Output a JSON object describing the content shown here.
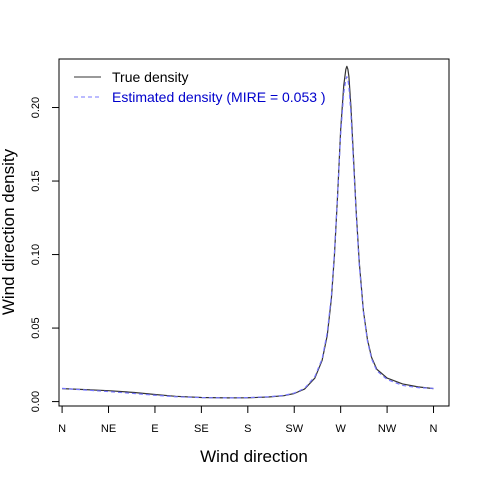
{
  "chart_data": {
    "type": "line",
    "title": "",
    "xlabel": "Wind direction",
    "ylabel": "Wind direction density",
    "x_ticks": [
      "N",
      "NE",
      "E",
      "SE",
      "S",
      "SW",
      "W",
      "NW",
      "N"
    ],
    "x_tick_degrees": [
      0,
      45,
      90,
      135,
      180,
      225,
      270,
      315,
      360
    ],
    "y_ticks": [
      "0.00",
      "0.05",
      "0.10",
      "0.15",
      "0.20"
    ],
    "y_tick_values": [
      0.0,
      0.05,
      0.1,
      0.15,
      0.2
    ],
    "xlim": [
      -3,
      375
    ],
    "ylim": [
      -0.003,
      0.233
    ],
    "grid": false,
    "legend_position": "top-left",
    "series": [
      {
        "name": "True density",
        "color": "#333333",
        "dash": "solid",
        "x": [
          0,
          20,
          45,
          70,
          90,
          110,
          135,
          160,
          180,
          200,
          215,
          225,
          235,
          245,
          252,
          257,
          261,
          264,
          267,
          270,
          273,
          275,
          276,
          277,
          278,
          280,
          282,
          285,
          288,
          292,
          296,
          300,
          305,
          315,
          330,
          345,
          360
        ],
        "y": [
          0.0088,
          0.0082,
          0.0074,
          0.0062,
          0.0048,
          0.0036,
          0.0028,
          0.0025,
          0.0026,
          0.0031,
          0.004,
          0.0055,
          0.0085,
          0.016,
          0.028,
          0.045,
          0.07,
          0.1,
          0.14,
          0.185,
          0.215,
          0.226,
          0.228,
          0.226,
          0.221,
          0.2,
          0.172,
          0.13,
          0.095,
          0.062,
          0.042,
          0.03,
          0.022,
          0.016,
          0.012,
          0.01,
          0.0088
        ]
      },
      {
        "name": "Estimated density (MIRE =  0.053 )",
        "color": "#7777ff",
        "dash": "dashed",
        "x": [
          0,
          20,
          45,
          70,
          90,
          110,
          135,
          160,
          180,
          200,
          215,
          225,
          235,
          245,
          252,
          257,
          261,
          264,
          267,
          270,
          273,
          275,
          276,
          277,
          278,
          280,
          282,
          285,
          288,
          292,
          296,
          300,
          305,
          315,
          330,
          345,
          360
        ],
        "y": [
          0.009,
          0.008,
          0.0068,
          0.0055,
          0.0043,
          0.0033,
          0.0027,
          0.0025,
          0.0027,
          0.0033,
          0.0042,
          0.0058,
          0.009,
          0.017,
          0.029,
          0.047,
          0.072,
          0.102,
          0.14,
          0.182,
          0.21,
          0.219,
          0.221,
          0.219,
          0.214,
          0.195,
          0.168,
          0.128,
          0.093,
          0.061,
          0.041,
          0.029,
          0.021,
          0.015,
          0.011,
          0.0095,
          0.009
        ]
      }
    ]
  },
  "legend": {
    "true_label": "True density",
    "estimated_label": "Estimated density (MIRE =  0.053 )",
    "estimated_text_color": "#0000cc"
  }
}
